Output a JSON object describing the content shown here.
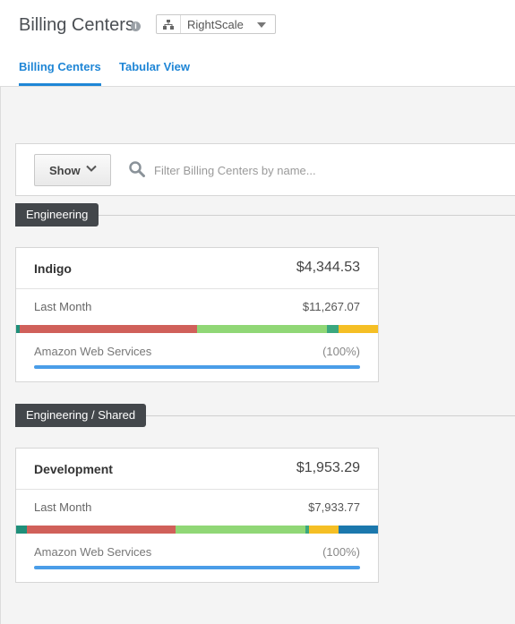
{
  "header": {
    "title": "Billing Centers",
    "info_icon": "info-icon",
    "org_select": {
      "icon": "org-hierarchy-icon",
      "value": "RightScale"
    },
    "tabs": [
      {
        "label": "Billing Centers",
        "active": true
      },
      {
        "label": "Tabular View",
        "active": false
      }
    ]
  },
  "filter": {
    "show_label": "Show",
    "search_placeholder": "Filter Billing Centers by name..."
  },
  "groups": [
    {
      "label": "Engineering",
      "cards": [
        {
          "name": "Indigo",
          "amount": "$4,344.53",
          "last_month_label": "Last Month",
          "last_month_value": "$11,267.07",
          "segments": [
            {
              "color": "#1f8f7a",
              "fraction": 0.01
            },
            {
              "color": "#d0605a",
              "fraction": 0.49
            },
            {
              "color": "#90d776",
              "fraction": 0.36
            },
            {
              "color": "#3ba87f",
              "fraction": 0.03
            },
            {
              "color": "#f5bf25",
              "fraction": 0.11
            }
          ],
          "provider": "Amazon Web Services",
          "provider_pct": "(100%)",
          "provider_fraction": 1.0
        }
      ]
    },
    {
      "label": "Engineering / Shared",
      "cards": [
        {
          "name": "Development",
          "amount": "$1,953.29",
          "last_month_label": "Last Month",
          "last_month_value": "$7,933.77",
          "segments": [
            {
              "color": "#1f8f7a",
              "fraction": 0.03
            },
            {
              "color": "#d0605a",
              "fraction": 0.41
            },
            {
              "color": "#90d776",
              "fraction": 0.36
            },
            {
              "color": "#3ba87f",
              "fraction": 0.01
            },
            {
              "color": "#f5bf25",
              "fraction": 0.08
            },
            {
              "color": "#1b78ad",
              "fraction": 0.11
            }
          ],
          "provider": "Amazon Web Services",
          "provider_pct": "(100%)",
          "provider_fraction": 1.0
        }
      ]
    }
  ],
  "colors": {
    "accent": "#1f86d6",
    "group_label_bg": "#43474b",
    "provider_bar": "#4a9de8"
  }
}
